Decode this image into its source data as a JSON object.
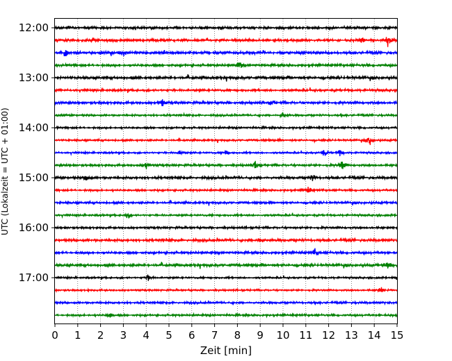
{
  "chart_data": {
    "type": "line",
    "title": "",
    "xlabel": "Zeit  [min]",
    "ylabel": "UTC (Lokalzeit = UTC + 01:00)",
    "xlim": [
      0,
      15
    ],
    "x_ticks": [
      "0",
      "1",
      "2",
      "3",
      "4",
      "5",
      "6",
      "7",
      "8",
      "9",
      "10",
      "11",
      "12",
      "13",
      "14",
      "15"
    ],
    "y_ticks": [
      "12:00",
      "13:00",
      "14:00",
      "15:00",
      "16:00",
      "17:00"
    ],
    "trace_interval_minutes": 15,
    "trace_count": 24,
    "first_trace": "12:00",
    "grid": "vertical dotted at each minute",
    "colors": [
      "#000000",
      "#ff0000",
      "#0000ff",
      "#008000"
    ],
    "events": [
      {
        "trace": 1,
        "x": 13.5,
        "amp": 0.2
      },
      {
        "trace": 1,
        "x": 14.6,
        "amp": 0.55
      },
      {
        "trace": 2,
        "x": 0.5,
        "amp": 0.5
      },
      {
        "trace": 2,
        "x": 3.0,
        "amp": 0.25
      },
      {
        "trace": 3,
        "x": 8.1,
        "amp": 0.3
      },
      {
        "trace": 6,
        "x": 4.7,
        "amp": 0.3
      },
      {
        "trace": 6,
        "x": 9.5,
        "amp": 0.25
      },
      {
        "trace": 7,
        "x": 10.0,
        "amp": 0.3
      },
      {
        "trace": 9,
        "x": 13.8,
        "amp": 0.45
      },
      {
        "trace": 10,
        "x": 5.5,
        "amp": 0.2
      },
      {
        "trace": 10,
        "x": 7.5,
        "amp": 0.2
      },
      {
        "trace": 10,
        "x": 11.8,
        "amp": 0.3
      },
      {
        "trace": 10,
        "x": 12.5,
        "amp": 0.3
      },
      {
        "trace": 11,
        "x": 4.0,
        "amp": 0.3
      },
      {
        "trace": 11,
        "x": 8.8,
        "amp": 0.3
      },
      {
        "trace": 11,
        "x": 12.6,
        "amp": 0.55
      },
      {
        "trace": 12,
        "x": 1.4,
        "amp": 0.3
      },
      {
        "trace": 12,
        "x": 11.3,
        "amp": 0.25
      },
      {
        "trace": 13,
        "x": 11.1,
        "amp": 0.3
      },
      {
        "trace": 15,
        "x": 3.2,
        "amp": 0.3
      },
      {
        "trace": 17,
        "x": 9.0,
        "amp": 0.3
      },
      {
        "trace": 18,
        "x": 11.4,
        "amp": 0.3
      },
      {
        "trace": 19,
        "x": 14.6,
        "amp": 0.3
      },
      {
        "trace": 20,
        "x": 4.1,
        "amp": 0.3
      },
      {
        "trace": 21,
        "x": 14.3,
        "amp": 0.3
      },
      {
        "trace": 23,
        "x": 2.4,
        "amp": 0.25
      }
    ]
  }
}
